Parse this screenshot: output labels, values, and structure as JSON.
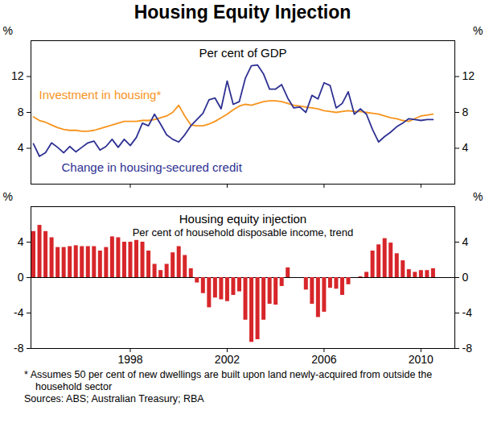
{
  "title": "Housing Equity Injection",
  "footnote": "*   Assumes 50 per cent of new dwellings are built upon land newly-acquired from outside the household sector",
  "sources": "Sources: ABS; Australian Treasury; RBA",
  "chart_data": [
    {
      "type": "line",
      "subtitle": "Per cent of GDP",
      "ylabel": "%",
      "x": [
        1994,
        1994.25,
        1994.5,
        1994.75,
        1995,
        1995.25,
        1995.5,
        1995.75,
        1996,
        1996.25,
        1996.5,
        1996.75,
        1997,
        1997.25,
        1997.5,
        1997.75,
        1998,
        1998.25,
        1998.5,
        1998.75,
        1999,
        1999.25,
        1999.5,
        1999.75,
        2000,
        2000.25,
        2000.5,
        2000.75,
        2001,
        2001.25,
        2001.5,
        2001.75,
        2002,
        2002.25,
        2002.5,
        2002.75,
        2003,
        2003.25,
        2003.5,
        2003.75,
        2004,
        2004.25,
        2004.5,
        2004.75,
        2005,
        2005.25,
        2005.5,
        2005.75,
        2006,
        2006.25,
        2006.5,
        2006.75,
        2007,
        2007.25,
        2007.5,
        2007.75,
        2008,
        2008.25,
        2008.5,
        2008.75,
        2009,
        2009.25,
        2009.5,
        2009.75,
        2010,
        2010.25,
        2010.5
      ],
      "xlim": [
        1993.9,
        2011.4
      ],
      "xticks": [
        1998,
        2002,
        2006,
        2010
      ],
      "ylim": [
        0,
        16
      ],
      "yticks": [
        4,
        8,
        12
      ],
      "grid": false,
      "tick_labels": "y",
      "series": [
        {
          "name": "Investment in housing*",
          "color": "#f7941d",
          "values": [
            7.5,
            7.1,
            6.9,
            6.6,
            6.3,
            6.1,
            6.0,
            6.0,
            5.9,
            5.9,
            6.0,
            6.2,
            6.4,
            6.6,
            6.8,
            7.0,
            7.0,
            7.0,
            7.1,
            7.1,
            7.2,
            7.4,
            7.6,
            8.0,
            8.8,
            7.6,
            6.6,
            6.5,
            6.5,
            6.7,
            7.0,
            7.4,
            7.8,
            8.3,
            8.7,
            8.9,
            8.8,
            9.0,
            9.2,
            9.3,
            9.3,
            9.2,
            9.0,
            8.8,
            8.7,
            8.6,
            8.5,
            8.4,
            8.2,
            8.1,
            8.0,
            8.1,
            8.2,
            8.1,
            8.1,
            8.0,
            7.9,
            7.8,
            7.6,
            7.4,
            7.3,
            7.1,
            7.0,
            7.3,
            7.6,
            7.7,
            7.8
          ]
        },
        {
          "name": "Change in housing-secured credit",
          "color": "#2e3192",
          "values": [
            4.5,
            3.1,
            3.5,
            4.6,
            4.1,
            3.5,
            4.2,
            3.6,
            4.1,
            4.6,
            4.8,
            3.8,
            4.2,
            5.0,
            4.1,
            5.0,
            4.3,
            5.2,
            6.8,
            6.5,
            7.8,
            6.7,
            5.5,
            5.0,
            4.7,
            5.5,
            6.5,
            7.2,
            7.9,
            9.4,
            9.6,
            8.4,
            11.5,
            8.9,
            9.2,
            11.8,
            13.2,
            13.3,
            12.3,
            10.6,
            10.6,
            11.1,
            9.6,
            8.5,
            8.6,
            8.0,
            9.9,
            9.5,
            11.3,
            11.0,
            8.5,
            9.0,
            10.3,
            7.8,
            8.4,
            7.8,
            6.1,
            4.7,
            5.3,
            5.8,
            6.4,
            6.8,
            7.3,
            7.2,
            7.1,
            7.2,
            7.2
          ]
        }
      ]
    },
    {
      "type": "bar",
      "title": "Housing equity injection",
      "subtitle": "Per cent of household disposable income, trend",
      "ylabel": "%",
      "x": [
        1994,
        1994.25,
        1994.5,
        1994.75,
        1995,
        1995.25,
        1995.5,
        1995.75,
        1996,
        1996.25,
        1996.5,
        1996.75,
        1997,
        1997.25,
        1997.5,
        1997.75,
        1998,
        1998.25,
        1998.5,
        1998.75,
        1999,
        1999.25,
        1999.5,
        1999.75,
        2000,
        2000.25,
        2000.5,
        2000.75,
        2001,
        2001.25,
        2001.5,
        2001.75,
        2002,
        2002.25,
        2002.5,
        2002.75,
        2003,
        2003.25,
        2003.5,
        2003.75,
        2004,
        2004.25,
        2004.5,
        2004.75,
        2005,
        2005.25,
        2005.5,
        2005.75,
        2006,
        2006.25,
        2006.5,
        2006.75,
        2007,
        2007.25,
        2007.5,
        2007.75,
        2008,
        2008.25,
        2008.5,
        2008.75,
        2009,
        2009.25,
        2009.5,
        2009.75,
        2010,
        2010.25,
        2010.5
      ],
      "values": [
        5.2,
        5.9,
        5.2,
        4.5,
        3.4,
        3.4,
        3.5,
        3.6,
        3.5,
        3.5,
        3.5,
        3.0,
        3.4,
        4.6,
        4.5,
        4.0,
        4.0,
        4.2,
        4.0,
        3.0,
        1.5,
        0.8,
        1.5,
        2.8,
        3.5,
        2.5,
        1.0,
        -0.6,
        -1.8,
        -3.4,
        -2.3,
        -2.5,
        -2.7,
        -2.0,
        -1.6,
        -4.8,
        -7.3,
        -7.0,
        -4.8,
        -3.0,
        -3.1,
        -1.0,
        1.1,
        0.0,
        0.0,
        -1.4,
        -3.0,
        -4.5,
        -3.9,
        -1.2,
        -1.3,
        -2.0,
        -0.8,
        0.0,
        0.1,
        0.6,
        3.0,
        3.7,
        4.4,
        3.9,
        2.7,
        1.9,
        0.9,
        0.6,
        0.8,
        0.8,
        1.0
      ],
      "color": "#d7262a",
      "xlim": [
        1993.9,
        2011.4
      ],
      "xticks": [
        1998,
        2002,
        2006,
        2010
      ],
      "ylim": [
        -8,
        8
      ],
      "yticks": [
        -8,
        -4,
        0,
        4
      ],
      "grid": false
    }
  ]
}
